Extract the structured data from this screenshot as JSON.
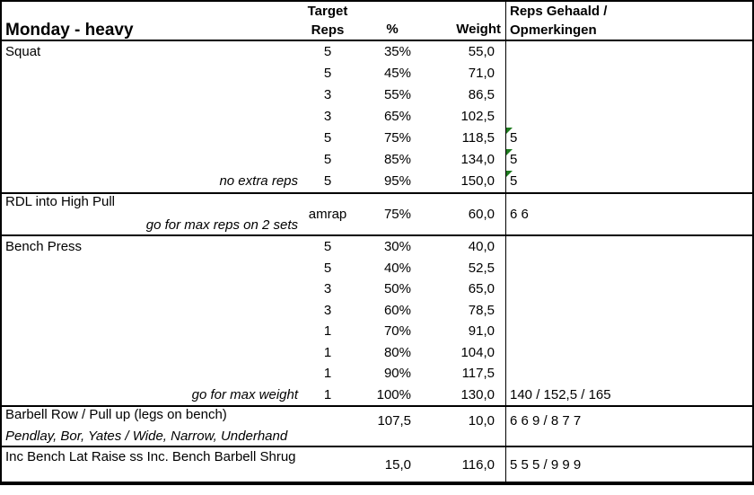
{
  "title": "Monday - heavy",
  "columns": {
    "target": [
      "Target",
      "Reps"
    ],
    "percent": "%",
    "weight": "Weight",
    "result": [
      "Reps Gehaald /",
      "Opmerkingen"
    ]
  },
  "colors": {
    "flag_green": "#1e7a1e",
    "border": "#000000",
    "background": "#ffffff",
    "text": "#000000"
  },
  "sections": [
    {
      "name": "Squat",
      "rows": [
        {
          "reps": "5",
          "percent": "35%",
          "weight": "55,0",
          "result": ""
        },
        {
          "reps": "5",
          "percent": "45%",
          "weight": "71,0",
          "result": ""
        },
        {
          "reps": "3",
          "percent": "55%",
          "weight": "86,5",
          "result": ""
        },
        {
          "reps": "3",
          "percent": "65%",
          "weight": "102,5",
          "result": ""
        },
        {
          "reps": "5",
          "percent": "75%",
          "weight": "118,5",
          "result": "5",
          "flag": true
        },
        {
          "reps": "5",
          "percent": "85%",
          "weight": "134,0",
          "result": "5",
          "flag": true
        },
        {
          "reps": "5",
          "percent": "95%",
          "weight": "150,0",
          "result": "5",
          "flag": true,
          "note": "no extra reps"
        }
      ]
    },
    {
      "name": "RDL into High Pull",
      "note": "go for max reps on 2 sets",
      "reps": "amrap",
      "percent": "75%",
      "weight": "60,0",
      "result": "6 6"
    },
    {
      "name": "Bench Press",
      "rows": [
        {
          "reps": "5",
          "percent": "30%",
          "weight": "40,0",
          "result": ""
        },
        {
          "reps": "5",
          "percent": "40%",
          "weight": "52,5",
          "result": ""
        },
        {
          "reps": "3",
          "percent": "50%",
          "weight": "65,0",
          "result": ""
        },
        {
          "reps": "3",
          "percent": "60%",
          "weight": "78,5",
          "result": ""
        },
        {
          "reps": "1",
          "percent": "70%",
          "weight": "91,0",
          "result": ""
        },
        {
          "reps": "1",
          "percent": "80%",
          "weight": "104,0",
          "result": ""
        },
        {
          "reps": "1",
          "percent": "90%",
          "weight": "117,5",
          "result": ""
        },
        {
          "reps": "1",
          "percent": "100%",
          "weight": "130,0",
          "result": "140 / 152,5 / 165",
          "note": "go for max weight"
        }
      ]
    },
    {
      "name": "Barbell Row / Pull up (legs on bench)",
      "subtitle": "Pendlay, Bor, Yates / Wide, Narrow, Underhand",
      "percent": "107,5",
      "weight": "10,0",
      "result": "6 6 9 / 8 7 7"
    },
    {
      "name": "Inc Bench Lat Raise ss Inc. Bench Barbell Shrug",
      "percent": "15,0",
      "weight": "116,0",
      "result": "5 5 5 / 9 9 9"
    }
  ]
}
